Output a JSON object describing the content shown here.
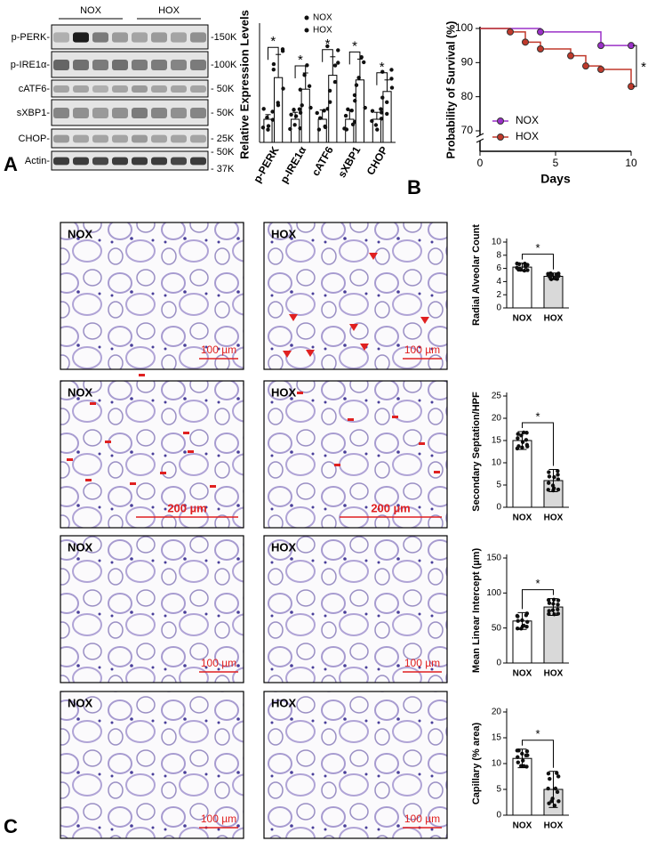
{
  "panels": {
    "a": "A",
    "b": "B",
    "c": "C"
  },
  "blot": {
    "groups": [
      "NOX",
      "HOX"
    ],
    "rows": [
      {
        "label": "p-PERK-",
        "sizes": [
          "-150K"
        ]
      },
      {
        "label": "p-IRE1α-",
        "sizes": [
          "-100K"
        ]
      },
      {
        "label": "cATF6-",
        "sizes": [
          "- 50K"
        ]
      },
      {
        "label": "sXBP1-",
        "sizes": [
          "- 50K"
        ]
      },
      {
        "label": "CHOP-",
        "sizes": [
          "- 25K"
        ]
      },
      {
        "label": "Actin-",
        "sizes": [
          "- 50K",
          "- 37K"
        ]
      }
    ]
  },
  "micrographs": [
    [
      {
        "label": "NOX",
        "scale": "100 µm"
      },
      {
        "label": "HOX",
        "scale": "100 µm"
      }
    ],
    [
      {
        "label": "NOX",
        "scale": "200 µm"
      },
      {
        "label": "HOX",
        "scale": "200 µm"
      }
    ],
    [
      {
        "label": "NOX",
        "scale": "100 µm"
      },
      {
        "label": "HOX",
        "scale": "100 µm"
      }
    ],
    [
      {
        "label": "NOX",
        "scale": "100 µm"
      },
      {
        "label": "HOX",
        "scale": "100 µm"
      }
    ]
  ],
  "chart_data": [
    {
      "type": "bar",
      "ylabel": "Relative Expression Levels",
      "categories": [
        "p-PERK",
        "p-IRE1α",
        "cATF6",
        "sXBP1",
        "CHOP"
      ],
      "series": [
        {
          "name": "NOX",
          "color": "#ffffff",
          "values": [
            1.0,
            1.0,
            1.0,
            1.0,
            1.0
          ],
          "errors": [
            0.2,
            0.3,
            0.4,
            0.4,
            0.3
          ]
        },
        {
          "name": "HOX",
          "color": "#ffffff",
          "values": [
            2.8,
            2.3,
            2.9,
            2.7,
            2.2
          ],
          "errors": [
            1.0,
            0.7,
            0.8,
            0.9,
            0.5
          ]
        }
      ],
      "ylim": [
        0,
        5
      ],
      "annotations": [
        "*",
        "*",
        "*",
        "*",
        "*"
      ]
    },
    {
      "type": "line",
      "step": true,
      "xlabel": "Days",
      "ylabel": "Probability of Survival (%)",
      "xlim": [
        0,
        10
      ],
      "ylim": [
        70,
        100
      ],
      "xticks": [
        0,
        5,
        10
      ],
      "yticks": [
        70,
        80,
        90,
        100
      ],
      "series": [
        {
          "name": "NOX",
          "color": "#9b30c8",
          "x": [
            0,
            4,
            8,
            10
          ],
          "values": [
            100,
            99,
            95,
            95
          ]
        },
        {
          "name": "HOX",
          "color": "#c0392b",
          "x": [
            0,
            2,
            3,
            4,
            6,
            7,
            8,
            10
          ],
          "values": [
            100,
            99,
            96,
            94,
            92,
            89,
            88,
            83
          ]
        }
      ],
      "annotation": "*"
    },
    {
      "type": "bar",
      "ylabel": "Radial Alveolar Count",
      "categories": [
        "NOX",
        "HOX"
      ],
      "values": [
        6.2,
        4.8
      ],
      "errors": [
        0.6,
        0.5
      ],
      "colors": [
        "#ffffff",
        "#d9d9d9"
      ],
      "ylim": [
        0,
        10
      ],
      "yticks": [
        0,
        2,
        4,
        6,
        8,
        10
      ],
      "annotation": "*"
    },
    {
      "type": "bar",
      "ylabel": "Secondary Septation/HPF",
      "categories": [
        "NOX",
        "HOX"
      ],
      "values": [
        15,
        6
      ],
      "errors": [
        2,
        2.5
      ],
      "colors": [
        "#ffffff",
        "#d9d9d9"
      ],
      "ylim": [
        0,
        25
      ],
      "yticks": [
        0,
        5,
        10,
        15,
        20,
        25
      ],
      "annotation": "*"
    },
    {
      "type": "bar",
      "ylabel": "Mean Linear Intercept (µm)",
      "categories": [
        "NOX",
        "HOX"
      ],
      "values": [
        60,
        80
      ],
      "errors": [
        12,
        12
      ],
      "colors": [
        "#ffffff",
        "#d9d9d9"
      ],
      "ylim": [
        0,
        150
      ],
      "yticks": [
        0,
        50,
        100,
        150
      ],
      "annotation": "*"
    },
    {
      "type": "bar",
      "ylabel": "Capillary (% area)",
      "categories": [
        "NOX",
        "HOX"
      ],
      "values": [
        11,
        5
      ],
      "errors": [
        1.8,
        3.5
      ],
      "colors": [
        "#ffffff",
        "#d9d9d9"
      ],
      "ylim": [
        0,
        20
      ],
      "yticks": [
        0,
        5,
        10,
        15,
        20
      ],
      "annotation": "*"
    }
  ]
}
